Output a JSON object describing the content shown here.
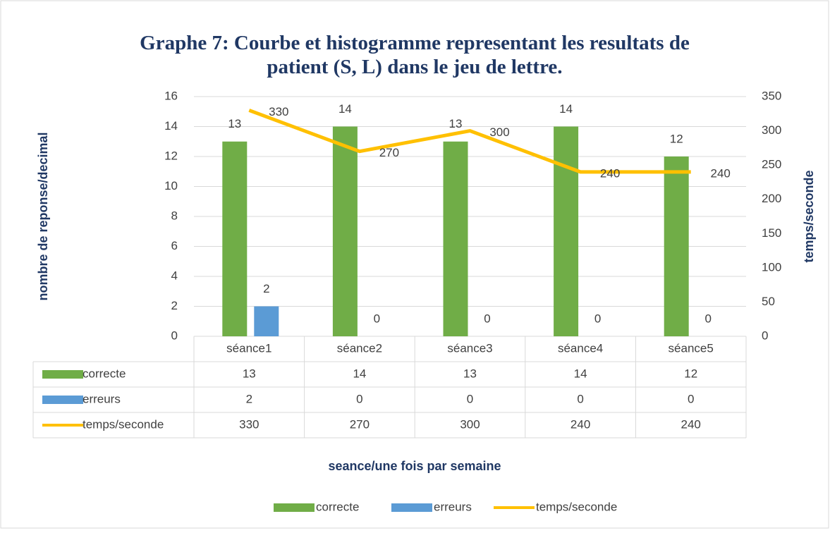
{
  "chart_data": {
    "type": "bar",
    "title": "Graphe 7: Courbe et histogramme representant les resultats de patient (S, L) dans le jeu de lettre.",
    "categories": [
      "séance1",
      "séance2",
      "séance3",
      "séance4",
      "séance5"
    ],
    "series": [
      {
        "name": "correcte",
        "color": "#70ad47",
        "values": [
          13,
          14,
          13,
          14,
          12
        ]
      },
      {
        "name": "erreurs",
        "color": "#5b9bd5",
        "values": [
          2,
          0,
          0,
          0,
          0
        ]
      },
      {
        "name": "temps/seconde",
        "color": "#ffc000",
        "type": "line",
        "axis": "y2",
        "values": [
          330,
          270,
          300,
          240,
          240
        ]
      }
    ],
    "ylabel": "nombre de reponse/decimal",
    "y2label": "temps/seconde",
    "xlabel": "seance/une fois par semaine",
    "ylim": [
      0,
      16
    ],
    "yticks": [
      0,
      2,
      4,
      6,
      8,
      10,
      12,
      14,
      16
    ],
    "y2lim": [
      0,
      350
    ],
    "y2ticks": [
      0,
      50,
      100,
      150,
      200,
      250,
      300,
      350
    ],
    "grid": true,
    "legend": "bottom",
    "data_table": true
  }
}
